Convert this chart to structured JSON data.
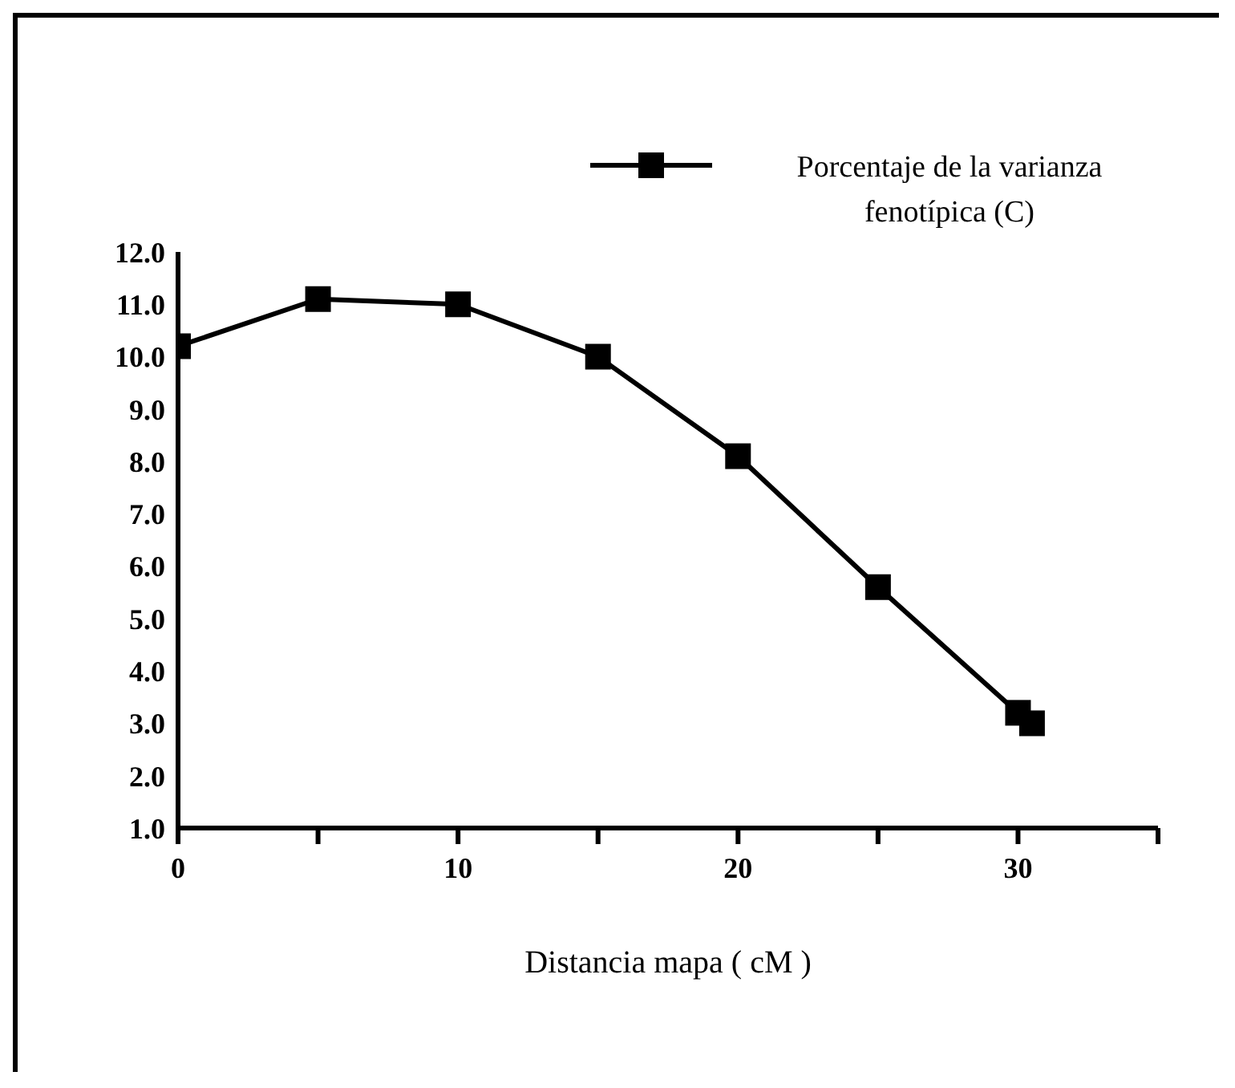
{
  "chart_data": {
    "type": "line",
    "xlabel": "Distancia mapa ( cM )",
    "x": [
      0,
      5,
      10,
      15,
      20,
      25,
      30,
      30.5
    ],
    "series": [
      {
        "name": "Porcentaje de la varianza fenotípica (C)",
        "color": "#000000",
        "values": [
          10.2,
          11.1,
          11.0,
          10.0,
          8.1,
          5.6,
          3.2,
          3.0
        ]
      }
    ],
    "xlim": [
      0,
      35
    ],
    "xticks": [
      0,
      {
        "value": 5,
        "label": null
      },
      10,
      {
        "value": 15,
        "label": null
      },
      20,
      {
        "value": 25,
        "label": null
      },
      30,
      {
        "value": 35,
        "label": null
      }
    ],
    "ylim": [
      1,
      12
    ],
    "yticks": [
      {
        "value": 1,
        "label": "1.0"
      },
      {
        "value": 2,
        "label": "2.0"
      },
      {
        "value": 3,
        "label": "3.0"
      },
      {
        "value": 4,
        "label": "4.0"
      },
      {
        "value": 5,
        "label": "5.0"
      },
      {
        "value": 6,
        "label": "6.0"
      },
      {
        "value": 7,
        "label": "7.0"
      },
      {
        "value": 8,
        "label": "8.0"
      },
      {
        "value": 9,
        "label": "9.0"
      },
      {
        "value": 10,
        "label": "10.0"
      },
      {
        "value": 11,
        "label": "11.0"
      },
      {
        "value": 12,
        "label": "12.0"
      }
    ],
    "grid": false,
    "legend": "top right",
    "marker": "square",
    "line_style": "solid"
  }
}
